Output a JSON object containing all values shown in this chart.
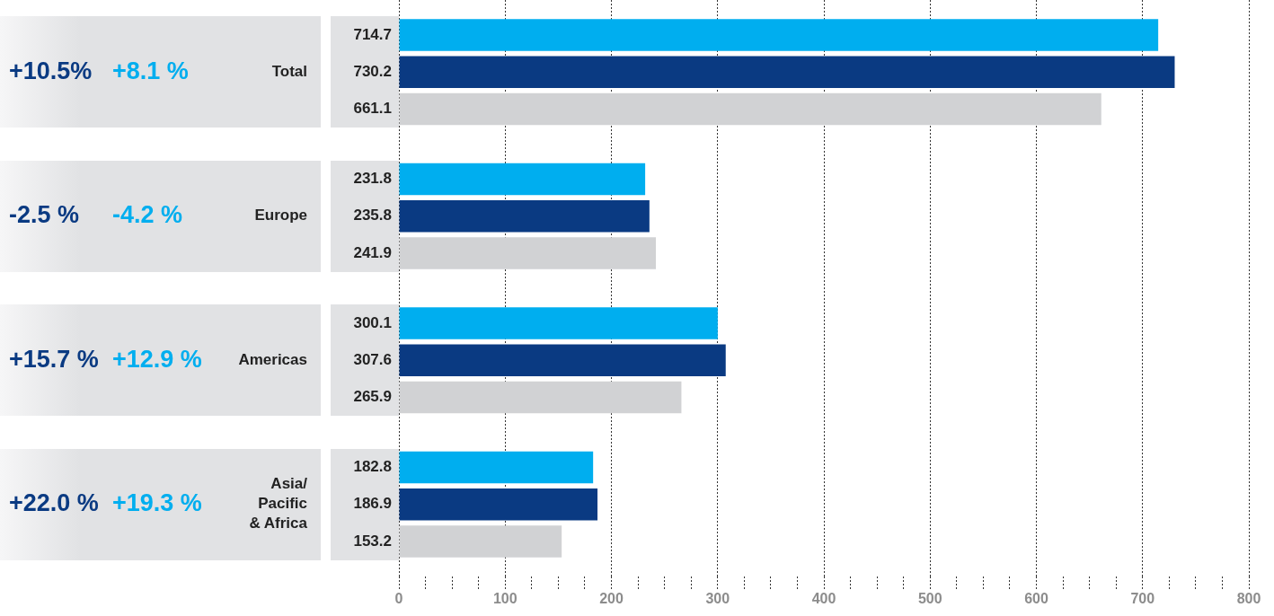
{
  "chart_data": {
    "type": "bar",
    "orientation": "horizontal",
    "categories": [
      "Total",
      "Europe",
      "Americas",
      "Asia/\nPacific\n& Africa"
    ],
    "series": [
      {
        "color": "#00aeef",
        "values": [
          714.7,
          231.8,
          300.1,
          182.8
        ]
      },
      {
        "color": "#0a3a82",
        "values": [
          730.2,
          235.8,
          307.6,
          186.9
        ]
      },
      {
        "color": "#d1d2d4",
        "values": [
          661.1,
          241.9,
          265.9,
          153.2
        ]
      }
    ],
    "xlim": [
      0,
      800
    ],
    "xticks": [
      0,
      {
        "value": 25,
        "label": null
      },
      {
        "value": 50,
        "label": null
      },
      {
        "value": 75,
        "label": null
      },
      100,
      {
        "value": 125,
        "label": null
      },
      {
        "value": 150,
        "label": null
      },
      {
        "value": 175,
        "label": null
      },
      200,
      {
        "value": 225,
        "label": null
      },
      {
        "value": 250,
        "label": null
      },
      {
        "value": 275,
        "label": null
      },
      300,
      {
        "value": 325,
        "label": null
      },
      {
        "value": 350,
        "label": null
      },
      {
        "value": 375,
        "label": null
      },
      400,
      {
        "value": 425,
        "label": null
      },
      {
        "value": 450,
        "label": null
      },
      {
        "value": 475,
        "label": null
      },
      500,
      {
        "value": 525,
        "label": null
      },
      {
        "value": 550,
        "label": null
      },
      {
        "value": 575,
        "label": null
      },
      600,
      {
        "value": 625,
        "label": null
      },
      {
        "value": 650,
        "label": null
      },
      {
        "value": 675,
        "label": null
      },
      700,
      {
        "value": 725,
        "label": null
      },
      {
        "value": 750,
        "label": null
      },
      {
        "value": 775,
        "label": null
      },
      800
    ],
    "grid": "x",
    "legend": false,
    "data_labels": true,
    "annotations": [
      "+10.5%",
      "+8.1 %",
      "-2.5 %",
      "-4.2 %",
      "+15.7 %",
      "+12.9 %",
      "+22.0 %",
      "+19.3 %"
    ]
  }
}
